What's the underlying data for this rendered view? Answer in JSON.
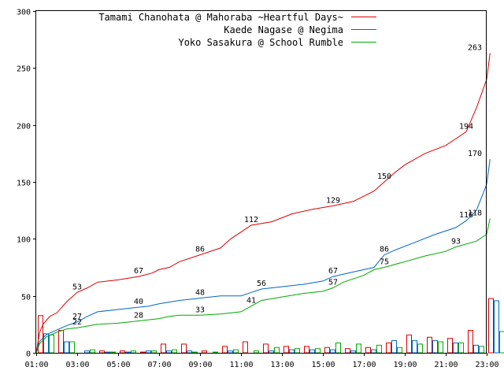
{
  "chart_data": {
    "type": "line",
    "title": "",
    "xlabel": "",
    "ylabel": "",
    "xlim": [
      "01:00",
      "23:10"
    ],
    "ylim": [
      0,
      300
    ],
    "yticks": [
      0,
      50,
      100,
      150,
      200,
      250,
      300
    ],
    "xticks": [
      "01:00",
      "03:00",
      "05:00",
      "07:00",
      "09:00",
      "11:00",
      "13:00",
      "15:00",
      "17:00",
      "19:00",
      "21:00",
      "23:00"
    ],
    "grid": false,
    "legend_position": "top-right",
    "series": [
      {
        "name": "Tamami Chanohata @ Mahoraba ~Heartful Days~",
        "color": "#dd0000",
        "points": [
          [
            "01:00",
            0
          ],
          [
            "01:10",
            18
          ],
          [
            "01:20",
            25
          ],
          [
            "01:40",
            32
          ],
          [
            "02:00",
            35
          ],
          [
            "02:30",
            45
          ],
          [
            "03:00",
            53
          ],
          [
            "03:30",
            57
          ],
          [
            "04:00",
            62
          ],
          [
            "05:00",
            64
          ],
          [
            "06:00",
            67
          ],
          [
            "06:40",
            70
          ],
          [
            "07:00",
            73
          ],
          [
            "07:30",
            75
          ],
          [
            "08:00",
            80
          ],
          [
            "09:00",
            86
          ],
          [
            "10:00",
            92
          ],
          [
            "10:30",
            100
          ],
          [
            "11:00",
            106
          ],
          [
            "11:30",
            112
          ],
          [
            "12:30",
            115
          ],
          [
            "13:30",
            122
          ],
          [
            "14:30",
            126
          ],
          [
            "15:30",
            129
          ],
          [
            "16:30",
            133
          ],
          [
            "17:30",
            142
          ],
          [
            "18:00",
            150
          ],
          [
            "18:30",
            158
          ],
          [
            "19:00",
            165
          ],
          [
            "20:00",
            175
          ],
          [
            "21:00",
            182
          ],
          [
            "21:30",
            188
          ],
          [
            "22:00",
            194
          ],
          [
            "22:30",
            215
          ],
          [
            "23:00",
            240
          ],
          [
            "23:10",
            263
          ]
        ],
        "labels": [
          {
            "time": "03:00",
            "value": 53,
            "text": "53"
          },
          {
            "time": "06:00",
            "value": 67,
            "text": "67"
          },
          {
            "time": "09:00",
            "value": 86,
            "text": "86"
          },
          {
            "time": "11:30",
            "value": 112,
            "text": "112"
          },
          {
            "time": "15:30",
            "value": 129,
            "text": "129"
          },
          {
            "time": "18:00",
            "value": 150,
            "text": "150"
          },
          {
            "time": "22:00",
            "value": 194,
            "text": "194"
          },
          {
            "time": "23:10",
            "value": 263,
            "text": "263"
          }
        ],
        "hourly": [
          33,
          20,
          0,
          2,
          2,
          1,
          8,
          8,
          2,
          6,
          10,
          8,
          6,
          6,
          5,
          4,
          5,
          9,
          16,
          14,
          13,
          20,
          48,
          0
        ]
      },
      {
        "name": "Kaede Nagase @ Negima",
        "color": "#0066cc",
        "points": [
          [
            "01:00",
            0
          ],
          [
            "01:10",
            10
          ],
          [
            "01:30",
            16
          ],
          [
            "02:00",
            20
          ],
          [
            "02:30",
            24
          ],
          [
            "03:00",
            27
          ],
          [
            "03:30",
            32
          ],
          [
            "04:00",
            36
          ],
          [
            "05:00",
            38
          ],
          [
            "06:00",
            40
          ],
          [
            "06:30",
            41
          ],
          [
            "07:00",
            43
          ],
          [
            "08:00",
            46
          ],
          [
            "09:00",
            48
          ],
          [
            "10:00",
            50
          ],
          [
            "11:00",
            50
          ],
          [
            "11:30",
            53
          ],
          [
            "12:00",
            56
          ],
          [
            "13:00",
            58
          ],
          [
            "14:00",
            60
          ],
          [
            "15:00",
            63
          ],
          [
            "15:30",
            67
          ],
          [
            "16:30",
            71
          ],
          [
            "17:30",
            75
          ],
          [
            "18:00",
            86
          ],
          [
            "18:30",
            90
          ],
          [
            "19:30",
            97
          ],
          [
            "20:30",
            104
          ],
          [
            "21:30",
            110
          ],
          [
            "22:00",
            116
          ],
          [
            "22:30",
            125
          ],
          [
            "23:00",
            148
          ],
          [
            "23:10",
            170
          ]
        ],
        "labels": [
          {
            "time": "03:00",
            "value": 27,
            "text": "27"
          },
          {
            "time": "06:00",
            "value": 40,
            "text": "40"
          },
          {
            "time": "09:00",
            "value": 48,
            "text": "48"
          },
          {
            "time": "12:00",
            "value": 56,
            "text": "56"
          },
          {
            "time": "15:30",
            "value": 67,
            "text": "67"
          },
          {
            "time": "18:00",
            "value": 86,
            "text": "86"
          },
          {
            "time": "22:00",
            "value": 116,
            "text": "116"
          },
          {
            "time": "23:10",
            "value": 170,
            "text": "170"
          }
        ],
        "hourly": [
          17,
          10,
          2,
          1,
          1,
          2,
          2,
          2,
          0,
          2,
          0,
          2,
          3,
          3,
          3,
          2,
          3,
          11,
          11,
          11,
          9,
          7,
          46,
          0
        ]
      },
      {
        "name": "Yoko Sasakura @ School Rumble",
        "color": "#00aa00",
        "points": [
          [
            "01:00",
            0
          ],
          [
            "01:10",
            8
          ],
          [
            "01:30",
            14
          ],
          [
            "02:00",
            18
          ],
          [
            "02:30",
            21
          ],
          [
            "03:00",
            22
          ],
          [
            "04:00",
            25
          ],
          [
            "05:00",
            26
          ],
          [
            "06:00",
            28
          ],
          [
            "07:00",
            30
          ],
          [
            "07:30",
            32
          ],
          [
            "08:00",
            33
          ],
          [
            "09:00",
            33
          ],
          [
            "10:00",
            34
          ],
          [
            "11:00",
            36
          ],
          [
            "11:30",
            41
          ],
          [
            "12:00",
            46
          ],
          [
            "13:00",
            49
          ],
          [
            "14:00",
            52
          ],
          [
            "15:00",
            54
          ],
          [
            "15:30",
            57
          ],
          [
            "16:00",
            62
          ],
          [
            "17:00",
            68
          ],
          [
            "17:30",
            73
          ],
          [
            "18:00",
            75
          ],
          [
            "19:00",
            80
          ],
          [
            "20:00",
            85
          ],
          [
            "21:00",
            89
          ],
          [
            "21:30",
            93
          ],
          [
            "22:30",
            98
          ],
          [
            "23:00",
            104
          ],
          [
            "23:10",
            118
          ]
        ],
        "labels": [
          {
            "time": "03:00",
            "value": 22,
            "text": "22"
          },
          {
            "time": "06:00",
            "value": 28,
            "text": "28"
          },
          {
            "time": "09:00",
            "value": 33,
            "text": "33"
          },
          {
            "time": "11:30",
            "value": 41,
            "text": "41"
          },
          {
            "time": "15:30",
            "value": 57,
            "text": "57"
          },
          {
            "time": "18:00",
            "value": 75,
            "text": "75"
          },
          {
            "time": "21:30",
            "value": 93,
            "text": "93"
          },
          {
            "time": "23:10",
            "value": 118,
            "text": "118"
          }
        ],
        "hourly": [
          16,
          10,
          3,
          1,
          2,
          2,
          3,
          1,
          1,
          3,
          2,
          5,
          4,
          4,
          9,
          8,
          7,
          5,
          8,
          10,
          9,
          6,
          19,
          0
        ]
      }
    ]
  }
}
